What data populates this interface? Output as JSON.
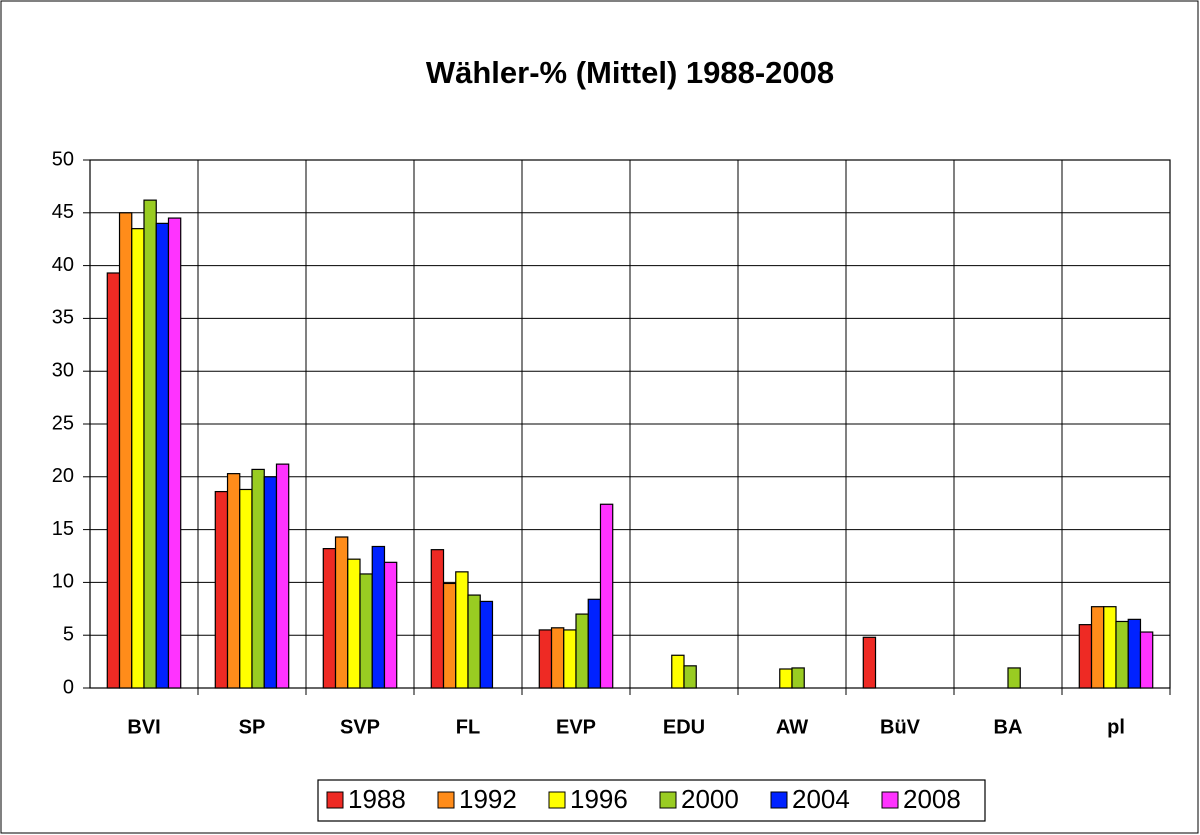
{
  "chart_data": {
    "type": "bar",
    "title": "Wähler-% (Mittel) 1988-2008",
    "categories": [
      "BVI",
      "SP",
      "SVP",
      "FL",
      "EVP",
      "EDU",
      "AW",
      "BüV",
      "BA",
      "pl"
    ],
    "series": [
      {
        "name": "1988",
        "color": "#ee2a24",
        "values": [
          39.3,
          18.6,
          13.2,
          13.1,
          5.5,
          null,
          null,
          4.8,
          null,
          6.0
        ]
      },
      {
        "name": "1992",
        "color": "#ff8c1a",
        "values": [
          45.0,
          20.3,
          14.3,
          9.9,
          5.7,
          null,
          null,
          null,
          null,
          7.7
        ]
      },
      {
        "name": "1996",
        "color": "#ffff00",
        "values": [
          43.5,
          18.8,
          12.2,
          11.0,
          5.5,
          3.1,
          1.8,
          null,
          null,
          7.7
        ]
      },
      {
        "name": "2000",
        "color": "#99cc22",
        "values": [
          46.2,
          20.7,
          10.8,
          8.8,
          7.0,
          2.1,
          1.9,
          null,
          1.9,
          6.3
        ]
      },
      {
        "name": "2004",
        "color": "#0022ff",
        "values": [
          44.0,
          20.0,
          13.4,
          8.2,
          8.4,
          null,
          null,
          null,
          null,
          6.5
        ]
      },
      {
        "name": "2008",
        "color": "#ff33ff",
        "values": [
          44.5,
          21.2,
          11.9,
          null,
          17.4,
          null,
          null,
          null,
          null,
          5.3
        ]
      }
    ],
    "ylim": [
      0,
      50
    ],
    "yticks": [
      0,
      5,
      10,
      15,
      20,
      25,
      30,
      35,
      40,
      45,
      50
    ],
    "grid": true
  }
}
